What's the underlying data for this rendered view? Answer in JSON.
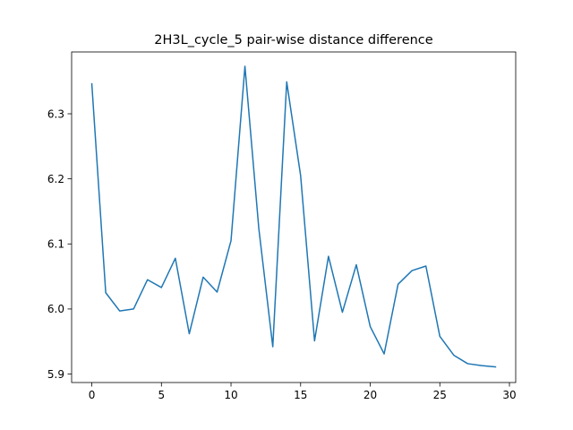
{
  "chart_data": {
    "type": "line",
    "title": "2H3L_cycle_5 pair-wise distance difference",
    "xlabel": "",
    "ylabel": "",
    "xlim": [
      -1.45,
      30.45
    ],
    "ylim": [
      5.887,
      6.395
    ],
    "x_ticks": [
      0,
      5,
      10,
      15,
      20,
      25,
      30
    ],
    "y_ticks": [
      5.9,
      6.0,
      6.1,
      6.2,
      6.3
    ],
    "grid": false,
    "legend": "none",
    "series": [
      {
        "color": "#1f77b4",
        "x": [
          0,
          1,
          2,
          3,
          4,
          5,
          6,
          7,
          8,
          9,
          10,
          11,
          12,
          13,
          14,
          15,
          16,
          17,
          18,
          19,
          20,
          21,
          22,
          23,
          24,
          25,
          26,
          27,
          28,
          29
        ],
        "values": [
          6.346,
          6.025,
          5.997,
          6.0,
          6.045,
          6.033,
          6.078,
          5.962,
          6.049,
          6.026,
          6.105,
          6.373,
          6.123,
          5.942,
          6.349,
          6.205,
          5.951,
          6.081,
          5.995,
          6.068,
          5.973,
          5.931,
          6.038,
          6.059,
          6.066,
          5.958,
          5.929,
          5.916,
          5.913,
          5.911
        ]
      }
    ]
  }
}
